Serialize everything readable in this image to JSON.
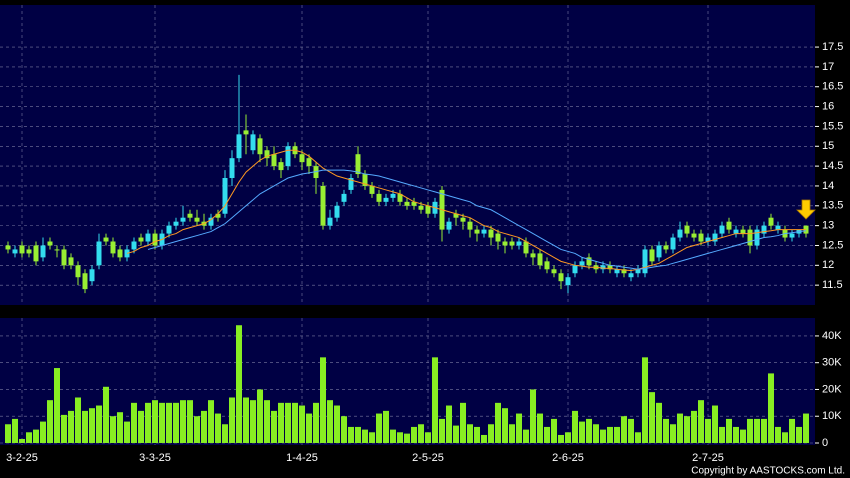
{
  "chart_data": {
    "type": "candlestick",
    "categories": [
      null,
      null,
      "3-2-25",
      null,
      null,
      null,
      null,
      null,
      null,
      null,
      null,
      null,
      null,
      null,
      null,
      null,
      null,
      null,
      null,
      null,
      null,
      "3-3-25",
      null,
      null,
      null,
      null,
      null,
      null,
      null,
      null,
      null,
      null,
      null,
      null,
      null,
      null,
      null,
      null,
      null,
      null,
      null,
      null,
      "1-4-25",
      null,
      null,
      null,
      null,
      null,
      null,
      null,
      null,
      null,
      null,
      null,
      null,
      null,
      null,
      null,
      null,
      null,
      "2-5-25",
      null,
      null,
      null,
      null,
      null,
      null,
      null,
      null,
      null,
      null,
      null,
      null,
      null,
      null,
      null,
      null,
      null,
      null,
      null,
      "2-6-25",
      null,
      null,
      null,
      null,
      null,
      null,
      null,
      null,
      null,
      null,
      null,
      null,
      null,
      null,
      null,
      null,
      null,
      null,
      null,
      "2-7-25",
      null,
      null,
      null,
      null,
      null,
      null,
      null,
      null,
      null,
      null,
      null,
      null,
      null,
      null
    ],
    "open": [
      12.5,
      12.3,
      12.5,
      12.4,
      12.5,
      12.2,
      12.6,
      12.4,
      12.4,
      12.2,
      12.0,
      11.8,
      11.6,
      12.0,
      12.7,
      12.6,
      12.4,
      12.2,
      12.4,
      12.7,
      12.6,
      12.8,
      12.5,
      12.8,
      13.0,
      13.1,
      13.3,
      13.2,
      13.1,
      13.0,
      13.3,
      13.3,
      14.2,
      14.7,
      15.4,
      14.9,
      15.2,
      14.9,
      14.8,
      14.6,
      14.5,
      15.0,
      14.8,
      14.7,
      14.5,
      14.0,
      13.0,
      13.2,
      13.6,
      13.9,
      14.8,
      14.3,
      14.0,
      13.8,
      13.6,
      13.7,
      13.8,
      13.6,
      13.6,
      13.5,
      13.5,
      13.3,
      13.9,
      12.9,
      13.3,
      13.2,
      13.1,
      12.9,
      12.8,
      12.9,
      12.8,
      12.6,
      12.6,
      12.5,
      12.6,
      12.3,
      12.3,
      12.1,
      11.9,
      11.8,
      11.5,
      11.8,
      12.0,
      12.2,
      12.0,
      11.9,
      12.0,
      11.8,
      11.9,
      11.7,
      11.8,
      11.8,
      12.4,
      12.2,
      12.5,
      12.4,
      12.7,
      13.0,
      12.8,
      12.8,
      12.6,
      12.6,
      12.8,
      13.1,
      12.8,
      12.9,
      12.9,
      12.5,
      12.8,
      13.2,
      12.9,
      12.9,
      12.7,
      12.8,
      13.0
    ],
    "high": [
      12.6,
      12.5,
      12.6,
      12.5,
      12.6,
      12.7,
      12.7,
      12.5,
      12.5,
      12.3,
      12.1,
      11.9,
      12.0,
      12.8,
      12.8,
      12.7,
      12.5,
      12.5,
      12.7,
      12.8,
      12.9,
      12.9,
      12.9,
      13.1,
      13.2,
      13.5,
      13.4,
      13.4,
      13.3,
      13.3,
      13.4,
      14.4,
      14.9,
      16.8,
      15.8,
      15.4,
      15.3,
      15.0,
      15.0,
      14.7,
      15.1,
      15.1,
      14.9,
      14.8,
      14.6,
      14.1,
      13.4,
      13.6,
      13.9,
      14.3,
      15.0,
      14.4,
      14.1,
      13.9,
      13.8,
      13.9,
      13.9,
      13.7,
      13.7,
      13.6,
      13.6,
      13.7,
      14.0,
      13.2,
      13.4,
      13.3,
      13.2,
      13.0,
      13.0,
      13.0,
      12.9,
      12.7,
      12.7,
      12.7,
      12.7,
      12.4,
      12.4,
      12.2,
      12.0,
      11.9,
      11.8,
      12.1,
      12.2,
      12.3,
      12.1,
      12.1,
      12.1,
      12.0,
      12.0,
      11.9,
      12.0,
      12.5,
      12.5,
      12.6,
      12.6,
      12.8,
      13.1,
      13.1,
      12.9,
      12.9,
      12.8,
      12.9,
      13.1,
      13.2,
      13.0,
      13.0,
      13.0,
      13.0,
      13.1,
      13.3,
      13.1,
      13.0,
      12.9,
      12.9,
      13.0
    ],
    "low": [
      12.3,
      12.2,
      12.2,
      12.2,
      12.0,
      12.1,
      12.4,
      12.2,
      11.9,
      11.9,
      11.5,
      11.3,
      11.5,
      11.9,
      12.5,
      12.2,
      12.1,
      12.1,
      12.3,
      12.5,
      12.5,
      12.4,
      12.4,
      12.7,
      12.9,
      13.0,
      13.1,
      13.0,
      12.9,
      12.9,
      13.1,
      13.2,
      14.0,
      14.6,
      14.8,
      14.8,
      14.6,
      14.5,
      14.4,
      14.2,
      14.4,
      14.7,
      14.4,
      14.3,
      13.8,
      12.9,
      12.9,
      13.1,
      13.5,
      13.8,
      14.2,
      13.9,
      13.7,
      13.5,
      13.5,
      13.6,
      13.5,
      13.4,
      13.4,
      13.3,
      13.2,
      13.2,
      12.6,
      12.8,
      13.0,
      12.9,
      12.7,
      12.6,
      12.7,
      12.5,
      12.4,
      12.3,
      12.4,
      12.4,
      12.2,
      12.0,
      11.9,
      11.8,
      11.7,
      11.4,
      11.3,
      11.7,
      11.9,
      11.9,
      11.8,
      11.8,
      11.8,
      11.7,
      11.7,
      11.6,
      11.7,
      11.7,
      12.0,
      12.1,
      12.3,
      12.3,
      12.6,
      12.7,
      12.6,
      12.5,
      12.5,
      12.5,
      12.7,
      12.8,
      12.7,
      12.7,
      12.3,
      12.4,
      12.7,
      12.9,
      12.8,
      12.6,
      12.6,
      12.7,
      12.7
    ],
    "close": [
      12.4,
      12.4,
      12.3,
      12.3,
      12.1,
      12.5,
      12.5,
      12.4,
      12.0,
      12.0,
      11.7,
      11.4,
      11.9,
      12.6,
      12.6,
      12.3,
      12.2,
      12.4,
      12.6,
      12.6,
      12.8,
      12.5,
      12.8,
      13.0,
      13.1,
      13.2,
      13.2,
      13.1,
      13.0,
      13.2,
      13.2,
      14.2,
      14.7,
      15.3,
      15.3,
      15.3,
      14.8,
      14.7,
      14.5,
      14.4,
      15.0,
      14.8,
      14.6,
      14.5,
      14.2,
      13.0,
      13.2,
      13.5,
      13.8,
      14.2,
      14.3,
      14.0,
      13.8,
      13.6,
      13.7,
      13.8,
      13.6,
      13.5,
      13.5,
      13.4,
      13.3,
      13.6,
      12.9,
      13.1,
      13.2,
      13.1,
      12.9,
      12.8,
      12.9,
      12.7,
      12.6,
      12.5,
      12.5,
      12.6,
      12.3,
      12.2,
      12.0,
      11.9,
      11.8,
      11.6,
      11.7,
      12.0,
      12.1,
      12.0,
      11.9,
      12.0,
      11.9,
      11.9,
      11.8,
      11.8,
      11.9,
      12.4,
      12.1,
      12.5,
      12.4,
      12.7,
      12.9,
      12.8,
      12.7,
      12.6,
      12.7,
      12.8,
      13.0,
      12.9,
      12.9,
      12.8,
      12.5,
      12.9,
      13.0,
      13.0,
      13.0,
      12.7,
      12.8,
      12.9,
      12.8
    ],
    "up_color": "#33ddee",
    "down_color": "#99ee33",
    "ma_lines": [
      {
        "color": "#ff9922",
        "values": [
          null,
          null,
          null,
          null,
          null,
          null,
          null,
          null,
          null,
          null,
          null,
          null,
          null,
          null,
          null,
          null,
          null,
          12.3,
          12.35,
          12.45,
          12.5,
          12.6,
          12.65,
          12.75,
          12.8,
          12.9,
          12.95,
          13.0,
          13.05,
          13.15,
          13.3,
          13.5,
          13.8,
          14.1,
          14.35,
          14.5,
          14.65,
          14.75,
          14.8,
          14.85,
          14.9,
          14.9,
          14.85,
          14.75,
          14.6,
          14.45,
          14.35,
          14.25,
          14.2,
          14.15,
          14.1,
          14.05,
          14.0,
          13.95,
          13.9,
          13.85,
          13.8,
          13.7,
          13.6,
          13.55,
          13.5,
          13.45,
          13.4,
          13.35,
          13.3,
          13.25,
          13.2,
          13.1,
          13.0,
          12.95,
          12.85,
          12.8,
          12.75,
          12.7,
          12.6,
          12.5,
          12.4,
          12.3,
          12.2,
          12.1,
          12.05,
          12.0,
          11.98,
          11.95,
          11.95,
          11.93,
          11.92,
          11.9,
          11.88,
          11.87,
          11.9,
          11.95,
          12.0,
          12.05,
          12.15,
          12.25,
          12.35,
          12.45,
          12.5,
          12.55,
          12.6,
          12.65,
          12.7,
          12.75,
          12.8,
          12.8,
          12.8,
          12.82,
          12.85,
          12.87,
          12.9,
          12.9,
          12.9,
          12.9,
          12.9
        ]
      },
      {
        "color": "#55aaff",
        "values": [
          null,
          null,
          null,
          null,
          null,
          null,
          null,
          null,
          null,
          null,
          null,
          null,
          null,
          null,
          null,
          null,
          null,
          null,
          null,
          null,
          12.4,
          12.45,
          12.5,
          12.55,
          12.6,
          12.65,
          12.7,
          12.75,
          12.8,
          12.85,
          12.95,
          13.05,
          13.2,
          13.35,
          13.5,
          13.65,
          13.8,
          13.9,
          14.0,
          14.1,
          14.2,
          14.25,
          14.3,
          14.33,
          14.36,
          14.4,
          14.4,
          14.4,
          14.4,
          14.38,
          14.35,
          14.3,
          14.28,
          14.25,
          14.2,
          14.15,
          14.1,
          14.05,
          14.0,
          13.95,
          13.9,
          13.85,
          13.8,
          13.75,
          13.7,
          13.65,
          13.6,
          13.5,
          13.45,
          13.4,
          13.3,
          13.2,
          13.1,
          13.0,
          12.9,
          12.8,
          12.7,
          12.6,
          12.5,
          12.4,
          12.35,
          12.3,
          12.2,
          12.15,
          12.1,
          12.05,
          12.0,
          11.98,
          11.95,
          11.93,
          11.9,
          11.92,
          11.95,
          11.98,
          12.0,
          12.05,
          12.1,
          12.15,
          12.2,
          12.25,
          12.3,
          12.35,
          12.4,
          12.45,
          12.5,
          12.55,
          12.6,
          12.65,
          12.7,
          12.72,
          12.75,
          12.8,
          12.82,
          12.85,
          12.87
        ]
      }
    ],
    "ylim": [
      11,
      18.56
    ],
    "yticks": [
      11.5,
      12,
      12.5,
      13,
      13.5,
      14,
      14.5,
      15,
      15.5,
      16,
      16.5,
      17,
      17.5
    ],
    "grid": true,
    "volume": {
      "color": "#88ee22",
      "values": [
        7000,
        9000,
        1500,
        4000,
        5000,
        8000,
        16000,
        28000,
        10500,
        12000,
        17000,
        12000,
        13000,
        14000,
        21000,
        10000,
        11500,
        8000,
        15000,
        12000,
        15000,
        16000,
        15000,
        15000,
        15000,
        16000,
        16000,
        10000,
        12000,
        16000,
        11000,
        7000,
        17000,
        44000,
        17000,
        16000,
        20000,
        16000,
        12000,
        15000,
        15000,
        15000,
        14000,
        11000,
        15000,
        32000,
        16000,
        14000,
        10000,
        6000,
        6000,
        5000,
        4000,
        11000,
        12000,
        5000,
        4000,
        3500,
        6000,
        7000,
        4000,
        32000,
        9000,
        14000,
        6500,
        15000,
        7000,
        6000,
        3000,
        7000,
        15000,
        13000,
        7000,
        11000,
        5000,
        20000,
        11000,
        6000,
        9000,
        3000,
        4000,
        12000,
        8000,
        9000,
        7000,
        5000,
        6000,
        6000,
        10000,
        9000,
        4000,
        32000,
        19000,
        15000,
        9000,
        7000,
        11000,
        10000,
        12000,
        16000,
        9000,
        14000,
        6000,
        9000,
        6000,
        5000,
        9000,
        9000,
        9000,
        26000,
        6000,
        4000,
        9000,
        6000,
        11000
      ],
      "ylim": [
        -750,
        46700
      ],
      "yticks": [
        0,
        {
          "value": 10000,
          "label": "10K"
        },
        {
          "value": 20000,
          "label": "20K"
        },
        {
          "value": 30000,
          "label": "30K"
        },
        {
          "value": 40000,
          "label": "40K"
        }
      ]
    },
    "copyright": "Copyright by AASTOCKS.com Ltd."
  }
}
